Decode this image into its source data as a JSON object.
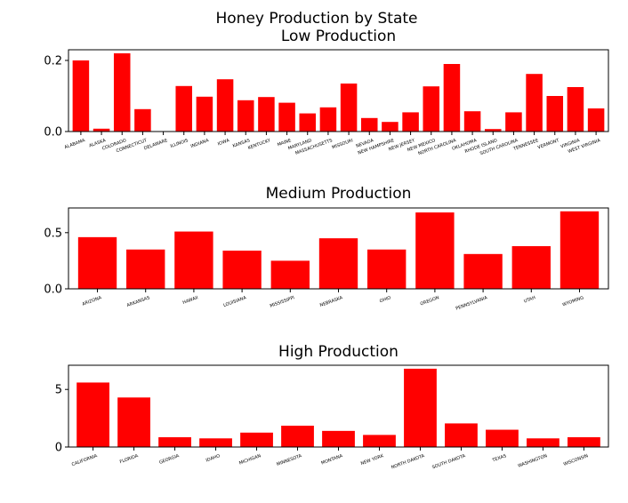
{
  "figure": {
    "suptitle": "Honey Production by State"
  },
  "chart_data": [
    {
      "type": "bar",
      "title": "Low Production",
      "xlabel": "",
      "ylabel": "",
      "ylim": [
        0,
        0.23
      ],
      "yticks": [
        0.0,
        0.2
      ],
      "ytick_labels": [
        "0.0",
        "0.2"
      ],
      "bar_color": "#ff0000",
      "categories": [
        "ALABAMA",
        "ALASKA",
        "COLORADO",
        "CONNECTICUT",
        "DELAWARE",
        "ILLINOIS",
        "INDIANA",
        "IOWA",
        "KANSAS",
        "KENTUCKY",
        "MAINE",
        "MARYLAND",
        "MASSACHUSETTS",
        "MISSOURI",
        "NEVADA",
        "NEW HAMPSHIRE",
        "NEW JERSEY",
        "NEW MEXICO",
        "NORTH CAROLINA",
        "OKLAHOMA",
        "RHODE ISLAND",
        "SOUTH CAROLINA",
        "TENNESSEE",
        "VERMONT",
        "VIRGINIA",
        "WEST VIRGINIA"
      ],
      "values": [
        0.2,
        0.008,
        0.22,
        0.063,
        0.001,
        0.128,
        0.098,
        0.147,
        0.088,
        0.097,
        0.081,
        0.051,
        0.068,
        0.135,
        0.038,
        0.027,
        0.054,
        0.127,
        0.19,
        0.057,
        0.007,
        0.054,
        0.162,
        0.1,
        0.125,
        0.065
      ]
    },
    {
      "type": "bar",
      "title": "Medium Production",
      "xlabel": "",
      "ylabel": "",
      "ylim": [
        0,
        0.72
      ],
      "yticks": [
        0.0,
        0.5
      ],
      "ytick_labels": [
        "0.0",
        "0.5"
      ],
      "bar_color": "#ff0000",
      "categories": [
        "ARIZONA",
        "ARKANSAS",
        "HAWAII",
        "LOUISIANA",
        "MISSISSIPPI",
        "NEBRASKA",
        "OHIO",
        "OREGON",
        "PENNSYLVANIA",
        "UTAH",
        "WYOMING"
      ],
      "values": [
        0.46,
        0.35,
        0.51,
        0.34,
        0.25,
        0.45,
        0.35,
        0.68,
        0.31,
        0.38,
        0.69
      ]
    },
    {
      "type": "bar",
      "title": "High Production",
      "xlabel": "",
      "ylabel": "",
      "ylim": [
        0,
        7.1
      ],
      "yticks": [
        0,
        5
      ],
      "ytick_labels": [
        "0",
        "5"
      ],
      "bar_color": "#ff0000",
      "categories": [
        "CALIFORNIA",
        "FLORIDA",
        "GEORGIA",
        "IDAHO",
        "MICHIGAN",
        "MINNESOTA",
        "MONTANA",
        "NEW YORK",
        "NORTH DAKOTA",
        "SOUTH DAKOTA",
        "TEXAS",
        "WASHINGTON",
        "WISCONSIN"
      ],
      "values": [
        5.6,
        4.3,
        0.85,
        0.75,
        1.25,
        1.85,
        1.4,
        1.05,
        6.8,
        2.05,
        1.5,
        0.75,
        0.85
      ]
    }
  ]
}
